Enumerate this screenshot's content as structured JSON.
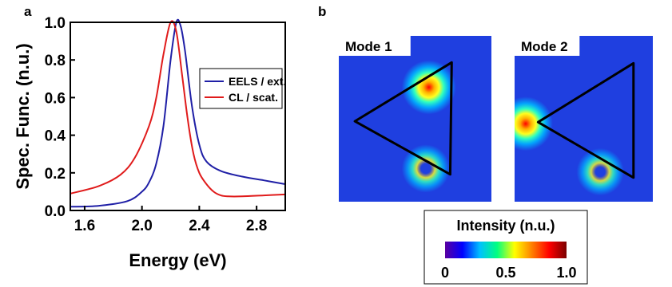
{
  "panels": {
    "a": "a",
    "b": "b"
  },
  "chart_data": [
    {
      "type": "line",
      "xlabel": "Energy (eV)",
      "ylabel": "Spec. Func. (n.u.)",
      "xlim": [
        1.5,
        3.0
      ],
      "ylim": [
        0.0,
        1.0
      ],
      "xticks": [
        "1.6",
        "2.0",
        "2.4",
        "2.8"
      ],
      "yticks": [
        "0.0",
        "0.2",
        "0.4",
        "0.6",
        "0.8",
        "1.0"
      ],
      "grid": false,
      "legend_position": "top-right",
      "series": [
        {
          "name": "EELS / ext.",
          "color": "#1f1fa6",
          "x": [
            1.5,
            1.7,
            1.9,
            2.0,
            2.05,
            2.1,
            2.15,
            2.2,
            2.24,
            2.27,
            2.3,
            2.35,
            2.4,
            2.45,
            2.55,
            2.7,
            2.85,
            3.0
          ],
          "y": [
            0.02,
            0.025,
            0.05,
            0.1,
            0.15,
            0.25,
            0.45,
            0.8,
            1.0,
            0.98,
            0.85,
            0.55,
            0.35,
            0.26,
            0.21,
            0.18,
            0.16,
            0.14
          ]
        },
        {
          "name": "CL / scat.",
          "color": "#e01b1b",
          "x": [
            1.5,
            1.7,
            1.85,
            1.95,
            2.05,
            2.1,
            2.15,
            2.2,
            2.24,
            2.28,
            2.32,
            2.36,
            2.4,
            2.45,
            2.5,
            2.55,
            2.6,
            2.7,
            2.85,
            3.0
          ],
          "y": [
            0.09,
            0.13,
            0.19,
            0.28,
            0.45,
            0.6,
            0.83,
            1.0,
            0.95,
            0.72,
            0.48,
            0.3,
            0.2,
            0.14,
            0.1,
            0.08,
            0.075,
            0.075,
            0.08,
            0.085
          ]
        }
      ]
    },
    {
      "type": "heatmap",
      "maps": [
        {
          "label": "Mode 1",
          "hotspots": [
            {
              "cx": 0.59,
              "cy": 0.31,
              "intensity": 1.0
            },
            {
              "cx": 0.57,
              "cy": 0.8,
              "intensity": 0.55
            }
          ]
        },
        {
          "label": "Mode 2",
          "hotspots": [
            {
              "cx": 0.08,
              "cy": 0.53,
              "intensity": 1.0
            },
            {
              "cx": 0.62,
              "cy": 0.82,
              "intensity": 0.5
            }
          ]
        }
      ],
      "colorbar": {
        "title": "Intensity (n.u.)",
        "ticks": [
          "0",
          "0.5",
          "1.0"
        ],
        "range": [
          0,
          1
        ],
        "colors": [
          "#5a00a0",
          "#0000ff",
          "#00c0ff",
          "#00ff80",
          "#ffff00",
          "#ff8000",
          "#ff0000",
          "#7a0000"
        ]
      },
      "background_color": "#1f3fe0"
    }
  ]
}
